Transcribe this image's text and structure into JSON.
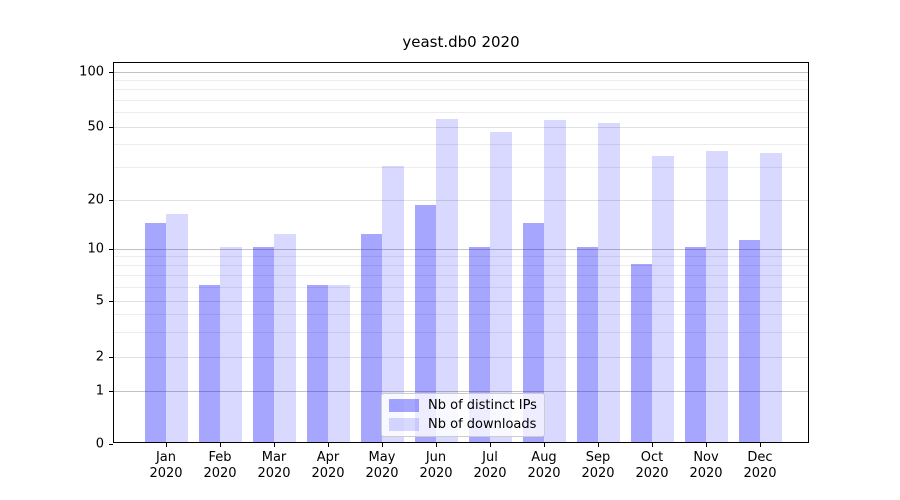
{
  "chart_data": {
    "type": "bar",
    "title": "yeast.db0 2020",
    "categories": [
      "Jan",
      "Feb",
      "Mar",
      "Apr",
      "May",
      "Jun",
      "Jul",
      "Aug",
      "Sep",
      "Oct",
      "Nov",
      "Dec"
    ],
    "year_label": "2020",
    "series": [
      {
        "name": "Nb of distinct IPs",
        "color": "rgba(0,0,255,0.35)",
        "values": [
          14,
          6,
          10,
          6,
          12,
          18,
          10,
          14,
          10,
          8,
          10,
          11
        ]
      },
      {
        "name": "Nb of downloads",
        "color": "rgba(0,0,255,0.15)",
        "values": [
          16,
          10,
          12,
          6,
          30,
          54,
          46,
          53,
          51,
          34,
          36,
          35
        ]
      }
    ],
    "yaxis": {
      "scale": "log-like (symlog)",
      "ticks": [
        0,
        1,
        2,
        5,
        10,
        20,
        50,
        100
      ],
      "minor_ticks": [
        3,
        4,
        6,
        7,
        8,
        9,
        30,
        40,
        60,
        70,
        80,
        90
      ],
      "ylim": [
        0,
        110
      ]
    },
    "legend_position": "lower center",
    "grid": true,
    "colors": {
      "major_decade_grid": "#c2c2c2",
      "labeled_grid": "#e1e1e1",
      "minor_grid": "#ececec",
      "spine": "#000000"
    }
  }
}
